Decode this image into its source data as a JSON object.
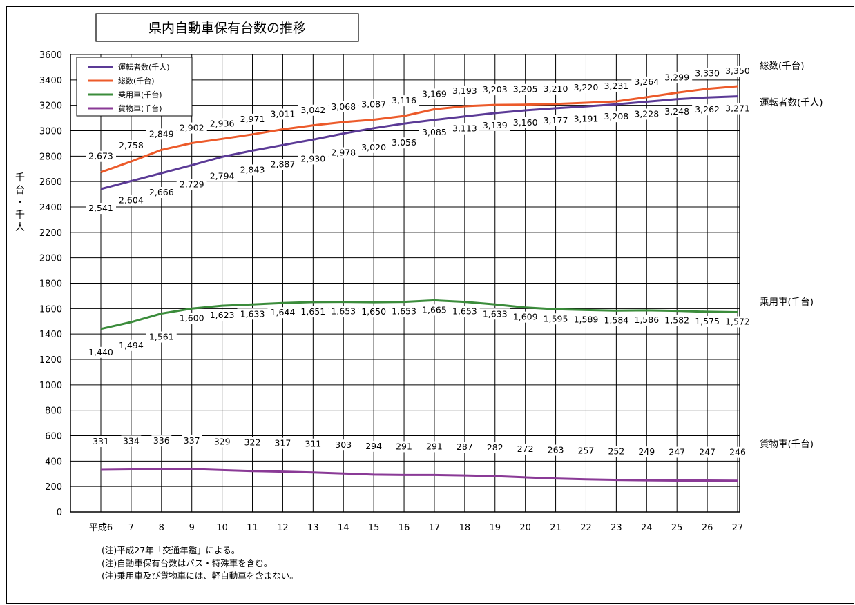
{
  "chart_data": {
    "type": "line",
    "title": "県内自動車保有台数の推移",
    "ylabel": "千台・千人",
    "ylim": [
      0,
      3600
    ],
    "yticks": [
      0,
      200,
      400,
      600,
      800,
      1000,
      1200,
      1400,
      1600,
      1800,
      2000,
      2200,
      2400,
      2600,
      2800,
      3000,
      3200,
      3400,
      3600
    ],
    "categories": [
      "平成6",
      "7",
      "8",
      "9",
      "10",
      "11",
      "12",
      "13",
      "14",
      "15",
      "16",
      "17",
      "18",
      "19",
      "20",
      "21",
      "22",
      "23",
      "24",
      "25",
      "26",
      "27"
    ],
    "grid": true,
    "legend_position": "top-left",
    "series": [
      {
        "name": "運転者数(千人)",
        "end_label": "運転者数(千人)",
        "color": "#5b3a96",
        "values": [
          2541,
          2604,
          2666,
          2729,
          2794,
          2843,
          2887,
          2930,
          2978,
          3020,
          3056,
          3085,
          3113,
          3139,
          3160,
          3177,
          3191,
          3208,
          3228,
          3248,
          3262,
          3271
        ],
        "labels": [
          "2,541",
          "2,604",
          "2,666",
          "2,729",
          "2,794",
          "2,843",
          "2,887",
          "2,930",
          "2,978",
          "3,020",
          "3,056",
          "3,085",
          "3,113",
          "3,139",
          "3,160",
          "3,177",
          "3,191",
          "3,208",
          "3,228",
          "3,248",
          "3,262",
          "3,271"
        ]
      },
      {
        "name": "総数(千台)",
        "end_label": "総数(千台)",
        "color": "#ec5a2a",
        "values": [
          2673,
          2758,
          2849,
          2902,
          2936,
          2971,
          3011,
          3042,
          3068,
          3087,
          3116,
          3169,
          3193,
          3203,
          3205,
          3210,
          3220,
          3231,
          3264,
          3299,
          3330,
          3350
        ],
        "labels": [
          "2,673",
          "2,758",
          "2,849",
          "2,902",
          "2,936",
          "2,971",
          "3,011",
          "3,042",
          "3,068",
          "3,087",
          "3,116",
          "3,169",
          "3,193",
          "3,203",
          "3,205",
          "3,210",
          "3,220",
          "3,231",
          "3,264",
          "3,299",
          "3,330",
          "3,350"
        ]
      },
      {
        "name": "乗用車(千台)",
        "end_label": "乗用車(千台)",
        "color": "#3b8c3b",
        "values": [
          1440,
          1494,
          1561,
          1600,
          1623,
          1633,
          1644,
          1651,
          1653,
          1650,
          1653,
          1665,
          1653,
          1633,
          1609,
          1595,
          1589,
          1584,
          1586,
          1582,
          1575,
          1572
        ],
        "labels": [
          "1,440",
          "1,494",
          "1,561",
          "1,600",
          "1,623",
          "1,633",
          "1,644",
          "1,651",
          "1,653",
          "1,650",
          "1,653",
          "1,665",
          "1,653",
          "1,633",
          "1,609",
          "1,595",
          "1,589",
          "1,584",
          "1,586",
          "1,582",
          "1,575",
          "1,572"
        ]
      },
      {
        "name": "貨物車(千台)",
        "end_label": "貨物車(千台)",
        "color": "#8a3a96",
        "values": [
          331,
          334,
          336,
          337,
          329,
          322,
          317,
          311,
          303,
          294,
          291,
          291,
          287,
          282,
          272,
          263,
          257,
          252,
          249,
          247,
          247,
          246
        ],
        "labels": [
          "331",
          "334",
          "336",
          "337",
          "329",
          "322",
          "317",
          "311",
          "303",
          "294",
          "291",
          "291",
          "287",
          "282",
          "272",
          "263",
          "257",
          "252",
          "249",
          "247",
          "247",
          "246"
        ]
      }
    ]
  },
  "notes": [
    "(注)平成27年「交通年鑑」による。",
    "(注)自動車保有台数はバス・特殊車を含む。",
    "(注)乗用車及び貨物車には、軽自動車を含まない。"
  ]
}
